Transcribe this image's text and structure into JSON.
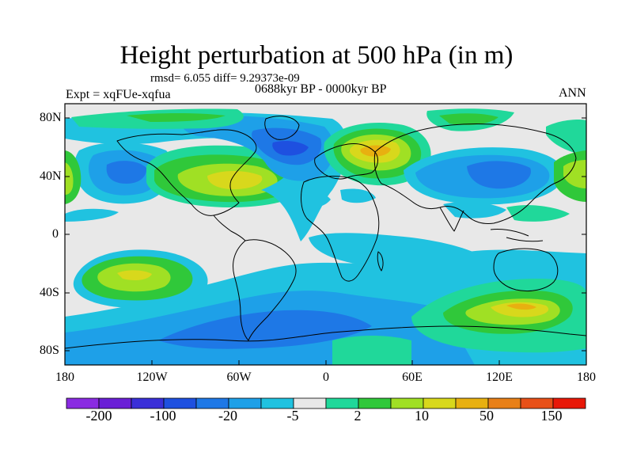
{
  "title": "Height perturbation at 500 hPa (in m)",
  "stats_line": "rmsd= 6.055 diff= 9.29373e-09",
  "period_line": "0688kyr BP - 0000kyr BP",
  "experiment_line": "Expt = xqFUe-xqfua",
  "season": "ANN",
  "axes": {
    "y_ticks": [
      "80N",
      "40N",
      "0",
      "40S",
      "80S"
    ],
    "x_ticks": [
      "180",
      "120W",
      "60W",
      "0",
      "60E",
      "120E",
      "180"
    ],
    "lat_range": [
      -90,
      90
    ],
    "lon_range": [
      -180,
      180
    ]
  },
  "colorbar": {
    "labels": [
      "-200",
      "-100",
      "-20",
      "-5",
      "2",
      "10",
      "50",
      "150"
    ],
    "colors": [
      "#8a2be2",
      "#6a1fd6",
      "#3a2fd8",
      "#1e50e0",
      "#1e78e6",
      "#1ea0e8",
      "#20c2e0",
      "#e8e8e8",
      "#20d89a",
      "#30c83a",
      "#a0e024",
      "#d8d81c",
      "#e8b010",
      "#e88018",
      "#e85018",
      "#e81808"
    ]
  },
  "colors": {
    "background_field": "#e8e8e8",
    "coast": "#000000"
  },
  "anomaly_regions": [
    {
      "name": "north-pacific-low",
      "lon": -148,
      "lat": 40,
      "category": "-20"
    },
    {
      "name": "north-america-high",
      "lon": -100,
      "lat": 36,
      "category": "10"
    },
    {
      "name": "north-atlantic-low",
      "lon": -28,
      "lat": 58,
      "category": "-20"
    },
    {
      "name": "eurasia-high",
      "lon": 38,
      "lat": 57,
      "category": "50"
    },
    {
      "name": "east-asia-low",
      "lon": 98,
      "lat": 38,
      "category": "-20"
    },
    {
      "name": "south-pacific-high",
      "lon": -136,
      "lat": -32,
      "category": "50"
    },
    {
      "name": "southern-ocean-low",
      "lon": -40,
      "lat": -58,
      "category": "-20"
    },
    {
      "name": "south-indian-high",
      "lon": 118,
      "lat": -53,
      "category": "50"
    }
  ]
}
